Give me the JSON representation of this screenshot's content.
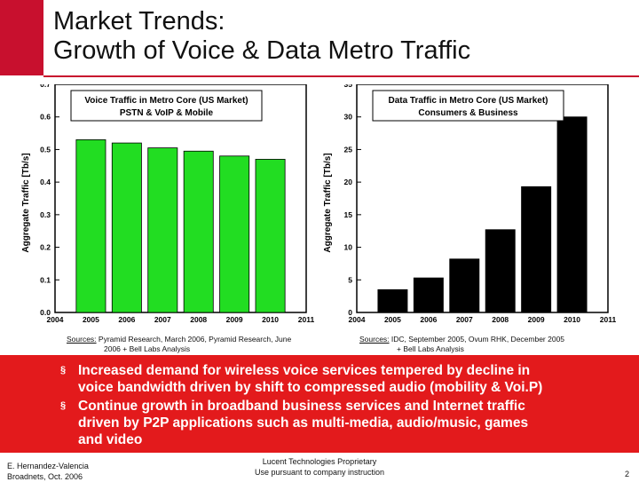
{
  "slide": {
    "title_line1": "Market Trends:",
    "title_line2": "Growth of Voice & Data Metro Traffic",
    "accent_color": "#c8102e",
    "bullet_bg": "#e31a1c"
  },
  "chart_data": [
    {
      "type": "bar",
      "title_line1": "Voice Traffic in Metro Core (US Market)",
      "title_line2": "PSTN & VoIP & Mobile",
      "ylabel": "Aggregate Traffic [Tb/s]",
      "xlabel": "",
      "x_ticks": [
        "2004",
        "2005",
        "2006",
        "2007",
        "2008",
        "2009",
        "2010",
        "2011"
      ],
      "y_ticks": [
        "0.0",
        "0.1",
        "0.2",
        "0.3",
        "0.4",
        "0.5",
        "0.6",
        "0.7"
      ],
      "ylim": [
        0,
        0.7
      ],
      "categories": [
        "2005",
        "2006",
        "2007",
        "2008",
        "2009",
        "2010"
      ],
      "values": [
        0.53,
        0.52,
        0.505,
        0.495,
        0.48,
        0.47
      ],
      "bar_color": "#22dd22"
    },
    {
      "type": "bar",
      "title_line1": "Data Traffic in Metro Core (US Market)",
      "title_line2": "Consumers & Business",
      "ylabel": "Aggregate Traffic [Tb/s]",
      "xlabel": "",
      "x_ticks": [
        "2004",
        "2005",
        "2006",
        "2007",
        "2008",
        "2009",
        "2010",
        "2011"
      ],
      "y_ticks": [
        "0",
        "5",
        "10",
        "15",
        "20",
        "25",
        "30",
        "35"
      ],
      "ylim": [
        0,
        35
      ],
      "categories": [
        "2005",
        "2006",
        "2007",
        "2008",
        "2009",
        "2010"
      ],
      "values": [
        3.5,
        5.3,
        8.2,
        12.7,
        19.3,
        30
      ],
      "bar_color": "#000000"
    }
  ],
  "sources": {
    "left_label": "Sources:",
    "left_line1": "Pyramid Research, March 2006, Pyramid Research, June",
    "left_line2": "2006 + Bell Labs Analysis",
    "right_label": "Sources:",
    "right_line1": "IDC, September 2005, Ovum RHK, December 2005",
    "right_line2": "+ Bell Labs Analysis"
  },
  "bullets": [
    {
      "line1": "Increased demand for wireless voice services tempered by decline in",
      "line2": "voice bandwidth driven by shift to compressed  audio (mobility & Voi.P)"
    },
    {
      "line1": "Continue growth in broadband business services and Internet traffic",
      "line2": "driven by P2P applications such as multi-media, audio/music, games",
      "line3": "and video"
    }
  ],
  "bullet_mark": "§",
  "footer": {
    "author": "E. Hernandez-Valencia",
    "event": "Broadnets, Oct. 2006",
    "prop1": "Lucent Technologies Proprietary",
    "prop2": "Use pursuant to company instruction",
    "page": "2"
  }
}
